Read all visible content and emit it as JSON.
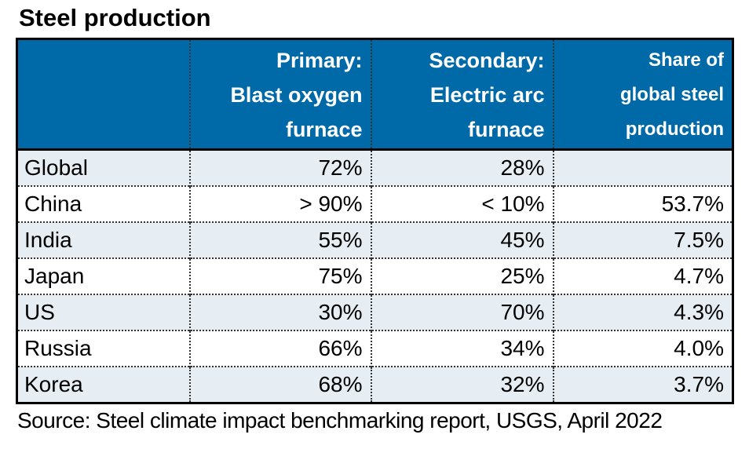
{
  "title": "Steel production",
  "source": "Source: Steel climate impact benchmarking report, USGS, April 2022",
  "colors": {
    "header_bg": "#0069A8",
    "header_text": "#FFFFFF",
    "stripe_row_bg": "#E7EEF3",
    "body_row_bg": "#FFFFFF",
    "border": "#000000",
    "text": "#000000"
  },
  "table": {
    "headers": [
      {
        "label": ""
      },
      {
        "label": "Primary:\nBlast oxygen\nfurnace"
      },
      {
        "label": "Secondary:\nElectric arc\nfurnace"
      },
      {
        "label": "Share of\nglobal steel\nproduction"
      }
    ],
    "rows": [
      {
        "country": "Global",
        "primary": "72%",
        "secondary": "28%",
        "share": ""
      },
      {
        "country": "China",
        "primary": "> 90%",
        "secondary": "< 10%",
        "share": "53.7%"
      },
      {
        "country": "India",
        "primary": "55%",
        "secondary": "45%",
        "share": "7.5%"
      },
      {
        "country": "Japan",
        "primary": "75%",
        "secondary": "25%",
        "share": "4.7%"
      },
      {
        "country": "US",
        "primary": "30%",
        "secondary": "70%",
        "share": "4.3%"
      },
      {
        "country": "Russia",
        "primary": "66%",
        "secondary": "34%",
        "share": "4.0%"
      },
      {
        "country": "Korea",
        "primary": "68%",
        "secondary": "32%",
        "share": "3.7%"
      }
    ]
  },
  "chart_data": {
    "type": "table",
    "title": "Steel production",
    "columns": [
      "",
      "Primary: Blast oxygen furnace",
      "Secondary: Electric arc furnace",
      "Share of global steel production"
    ],
    "rows": [
      [
        "Global",
        "72%",
        "28%",
        ""
      ],
      [
        "China",
        "> 90%",
        "< 10%",
        "53.7%"
      ],
      [
        "India",
        "55%",
        "45%",
        "7.5%"
      ],
      [
        "Japan",
        "75%",
        "25%",
        "4.7%"
      ],
      [
        "US",
        "30%",
        "70%",
        "4.3%"
      ],
      [
        "Russia",
        "66%",
        "34%",
        "4.0%"
      ],
      [
        "Korea",
        "68%",
        "32%",
        "3.7%"
      ]
    ],
    "source": "Source: Steel climate impact benchmarking report, USGS, April 2022"
  }
}
